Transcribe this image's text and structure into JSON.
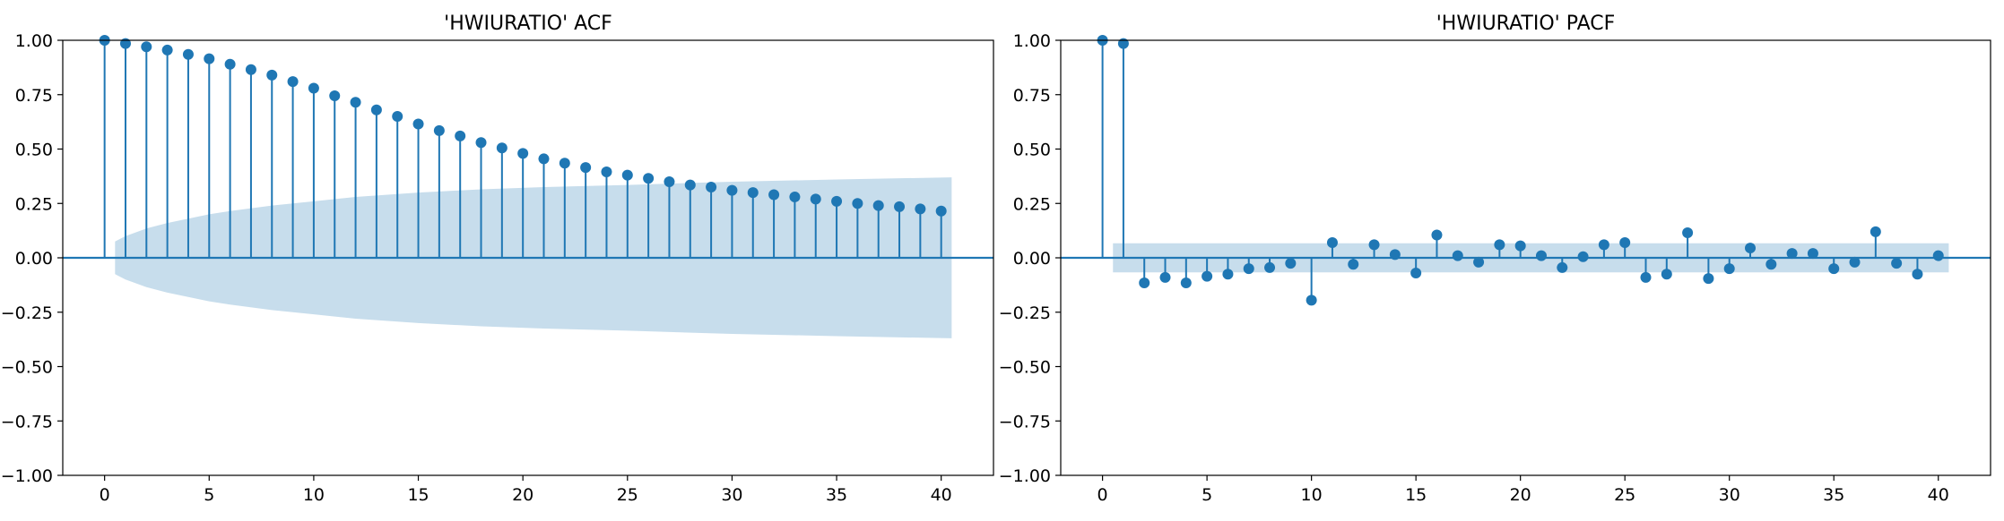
{
  "colors": {
    "series": "#1f77b4",
    "confidence_band": "#1f77b4",
    "axes": "#000000"
  },
  "chart_data": [
    {
      "type": "stem",
      "title": "'HWIURATIO' ACF",
      "xlabel": "",
      "ylabel": "",
      "xlim": [
        -2,
        42.5
      ],
      "ylim": [
        -1.0,
        1.0
      ],
      "x_ticks": [
        "0",
        "5",
        "10",
        "15",
        "20",
        "25",
        "30",
        "35",
        "40"
      ],
      "y_ticks": [
        "1.00",
        "0.75",
        "0.50",
        "0.25",
        "0.00",
        "−0.25",
        "−0.50",
        "−0.75",
        "−1.00"
      ],
      "grid": false,
      "lags": [
        0,
        1,
        2,
        3,
        4,
        5,
        6,
        7,
        8,
        9,
        10,
        11,
        12,
        13,
        14,
        15,
        16,
        17,
        18,
        19,
        20,
        21,
        22,
        23,
        24,
        25,
        26,
        27,
        28,
        29,
        30,
        31,
        32,
        33,
        34,
        35,
        36,
        37,
        38,
        39,
        40
      ],
      "values": [
        1.0,
        0.985,
        0.97,
        0.955,
        0.935,
        0.915,
        0.89,
        0.865,
        0.84,
        0.81,
        0.78,
        0.745,
        0.715,
        0.68,
        0.65,
        0.615,
        0.585,
        0.56,
        0.53,
        0.505,
        0.48,
        0.455,
        0.435,
        0.415,
        0.395,
        0.38,
        0.365,
        0.35,
        0.335,
        0.325,
        0.31,
        0.3,
        0.29,
        0.28,
        0.27,
        0.26,
        0.25,
        0.24,
        0.235,
        0.225,
        0.215
      ],
      "confidence_band": {
        "lags": [
          0.5,
          1,
          2,
          3,
          4,
          5,
          6,
          8,
          10,
          12,
          15,
          18,
          21,
          25,
          30,
          35,
          40.5
        ],
        "upper": [
          0.075,
          0.1,
          0.135,
          0.16,
          0.18,
          0.2,
          0.215,
          0.24,
          0.26,
          0.28,
          0.3,
          0.315,
          0.325,
          0.335,
          0.35,
          0.36,
          0.37
        ],
        "lower": [
          -0.075,
          -0.1,
          -0.135,
          -0.16,
          -0.18,
          -0.2,
          -0.215,
          -0.24,
          -0.26,
          -0.28,
          -0.3,
          -0.315,
          -0.325,
          -0.335,
          -0.35,
          -0.36,
          -0.37
        ]
      }
    },
    {
      "type": "stem",
      "title": "'HWIURATIO' PACF",
      "xlabel": "",
      "ylabel": "",
      "xlim": [
        -2,
        42.5
      ],
      "ylim": [
        -1.0,
        1.0
      ],
      "x_ticks": [
        "0",
        "5",
        "10",
        "15",
        "20",
        "25",
        "30",
        "35",
        "40"
      ],
      "y_ticks": [
        "1.00",
        "0.75",
        "0.50",
        "0.25",
        "0.00",
        "−0.25",
        "−0.50",
        "−0.75",
        "−1.00"
      ],
      "grid": false,
      "lags": [
        0,
        1,
        2,
        3,
        4,
        5,
        6,
        7,
        8,
        9,
        10,
        11,
        12,
        13,
        14,
        15,
        16,
        17,
        18,
        19,
        20,
        21,
        22,
        23,
        24,
        25,
        26,
        27,
        28,
        29,
        30,
        31,
        32,
        33,
        34,
        35,
        36,
        37,
        38,
        39,
        40
      ],
      "values": [
        1.0,
        0.985,
        -0.115,
        -0.09,
        -0.115,
        -0.085,
        -0.075,
        -0.05,
        -0.045,
        -0.025,
        -0.195,
        0.07,
        -0.03,
        0.06,
        0.015,
        -0.07,
        0.105,
        0.01,
        -0.02,
        0.06,
        0.055,
        0.01,
        -0.045,
        0.005,
        0.06,
        0.07,
        -0.09,
        -0.075,
        0.115,
        -0.095,
        -0.05,
        0.045,
        -0.03,
        0.02,
        0.02,
        -0.05,
        -0.02,
        0.12,
        -0.025,
        -0.075,
        0.01
      ],
      "confidence_band": {
        "lags": [
          0.5,
          40.5
        ],
        "upper": [
          0.067,
          0.067
        ],
        "lower": [
          -0.067,
          -0.067
        ]
      }
    }
  ]
}
